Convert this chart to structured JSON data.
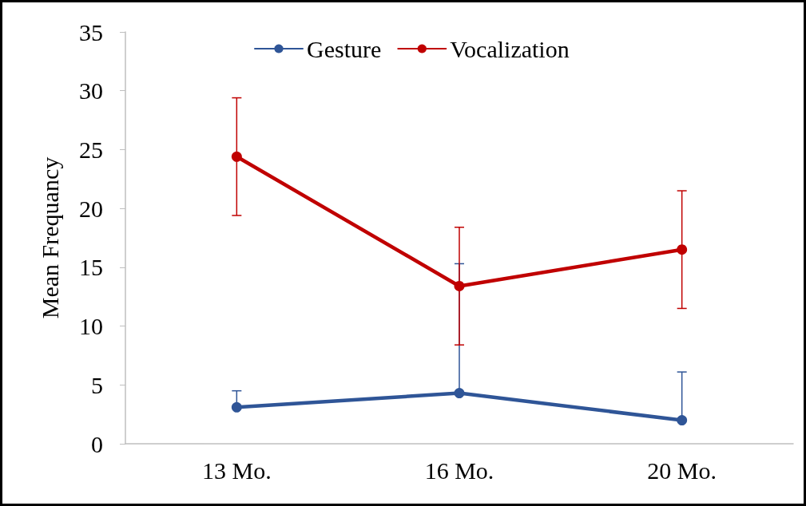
{
  "chart_data": {
    "type": "line",
    "ylabel": "Mean Frequancy",
    "categories": [
      "13 Mo.",
      "16 Mo.",
      "20 Mo."
    ],
    "series": [
      {
        "name": "Gesture",
        "color": "#2f5597",
        "values": [
          3.1,
          4.3,
          2.0
        ],
        "errors": [
          [
            3.1,
            4.5
          ],
          [
            4.3,
            15.3
          ],
          [
            2.0,
            6.1
          ]
        ]
      },
      {
        "name": "Vocalization",
        "color": "#c00000",
        "values": [
          24.4,
          13.4,
          16.5
        ],
        "errors": [
          5,
          5,
          5
        ]
      }
    ],
    "ylim": [
      0,
      35
    ],
    "yticks": [
      0,
      5,
      10,
      15,
      20,
      25,
      30,
      35
    ],
    "grid": false,
    "legend": "top",
    "marker": "circle"
  }
}
